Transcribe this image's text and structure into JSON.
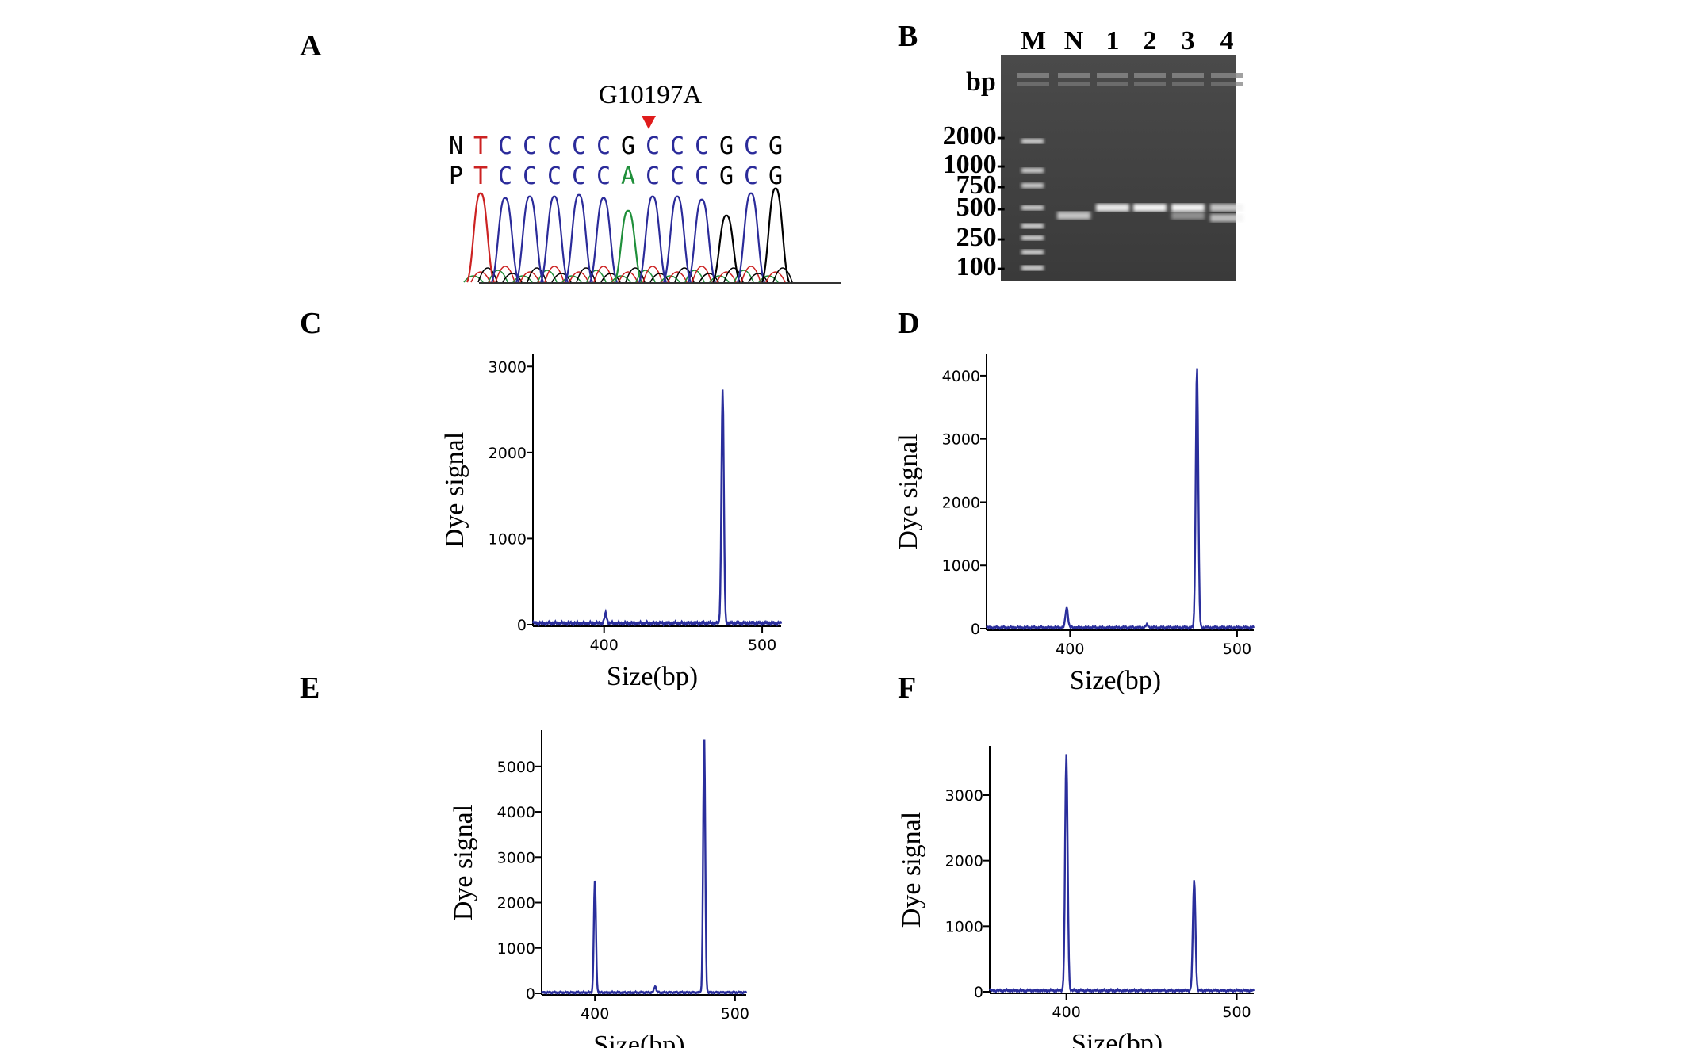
{
  "panels": {
    "A": {
      "letter": "A"
    },
    "B": {
      "letter": "B"
    },
    "C": {
      "letter": "C"
    },
    "D": {
      "letter": "D"
    },
    "E": {
      "letter": "E"
    },
    "F": {
      "letter": "F"
    }
  },
  "sequencing": {
    "mutation_label": "G10197A",
    "rows": [
      {
        "label": "N",
        "bases": [
          "T",
          "C",
          "C",
          "C",
          "C",
          "C",
          "G",
          "C",
          "C",
          "C",
          "G",
          "C",
          "G"
        ]
      },
      {
        "label": "P",
        "bases": [
          "T",
          "C",
          "C",
          "C",
          "C",
          "C",
          "A",
          "C",
          "C",
          "C",
          "G",
          "C",
          "G"
        ]
      }
    ],
    "base_colors": {
      "T": "#cc2222",
      "C": "#2b2b9a",
      "G": "#000000",
      "A": "#1f8f3a"
    },
    "marker_color": "#e01b1b"
  },
  "gel": {
    "lane_labels": [
      "M",
      "N",
      "1",
      "2",
      "3",
      "4"
    ],
    "unit_label": "bp",
    "ladder_labels": [
      "2000-",
      "1000-",
      "750-",
      "500-",
      "250-",
      "100-"
    ]
  },
  "chart_data": [
    {
      "panel": "C",
      "type": "line",
      "xlabel": "Size(bp)",
      "ylabel": "Dye signal",
      "xlim": [
        355,
        512
      ],
      "ylim": [
        0,
        3150
      ],
      "xticks": [
        400,
        500
      ],
      "yticks": [
        0,
        1000,
        2000,
        3000
      ],
      "peaks": [
        {
          "x": 401,
          "y": 110
        },
        {
          "x": 475,
          "y": 2720
        }
      ]
    },
    {
      "panel": "D",
      "type": "line",
      "xlabel": "Size(bp)",
      "ylabel": "Dye signal",
      "xlim": [
        350,
        510
      ],
      "ylim": [
        0,
        4350
      ],
      "xticks": [
        400,
        500
      ],
      "yticks": [
        0,
        1000,
        2000,
        3000,
        4000
      ],
      "peaks": [
        {
          "x": 398,
          "y": 320
        },
        {
          "x": 446,
          "y": 40
        },
        {
          "x": 476,
          "y": 4140
        }
      ]
    },
    {
      "panel": "E",
      "type": "line",
      "xlabel": "Size(bp)",
      "ylabel": "Dye signal",
      "xlim": [
        362,
        508
      ],
      "ylim": [
        0,
        5800
      ],
      "xticks": [
        400,
        500
      ],
      "yticks": [
        0,
        1000,
        2000,
        3000,
        4000,
        5000
      ],
      "peaks": [
        {
          "x": 400,
          "y": 2480
        },
        {
          "x": 443,
          "y": 140
        },
        {
          "x": 478,
          "y": 5620
        }
      ]
    },
    {
      "panel": "F",
      "type": "line",
      "xlabel": "Size(bp)",
      "ylabel": "Dye signal",
      "xlim": [
        355,
        510
      ],
      "ylim": [
        0,
        3750
      ],
      "xticks": [
        400,
        500
      ],
      "yticks": [
        0,
        1000,
        2000,
        3000
      ],
      "peaks": [
        {
          "x": 400,
          "y": 3600
        },
        {
          "x": 475,
          "y": 1690
        }
      ]
    }
  ]
}
